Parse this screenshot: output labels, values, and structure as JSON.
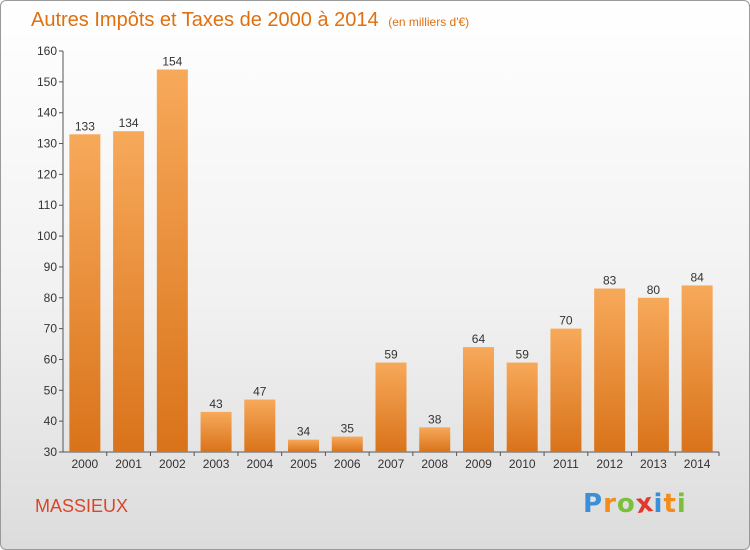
{
  "chart_data": {
    "type": "bar",
    "title": "Autres Impôts et Taxes de 2000 à 2014",
    "subtitle": "(en milliers d'€)",
    "categories": [
      "2000",
      "2001",
      "2002",
      "2003",
      "2004",
      "2005",
      "2006",
      "2007",
      "2008",
      "2009",
      "2010",
      "2011",
      "2012",
      "2013",
      "2014"
    ],
    "values": [
      133,
      134,
      154,
      43,
      47,
      34,
      35,
      59,
      38,
      64,
      59,
      70,
      83,
      80,
      84
    ],
    "ylim": [
      30,
      160
    ],
    "yticks": [
      30,
      40,
      50,
      60,
      70,
      80,
      90,
      100,
      110,
      120,
      130,
      140,
      150,
      160
    ],
    "grid": false,
    "colors": {
      "bar_light": "#f7a95a",
      "bar_dark": "#d9731a",
      "title": "#e0700f"
    }
  },
  "commune": "MASSIEUX",
  "logo": {
    "text": "Proxiti",
    "letters": [
      {
        "ch": "P",
        "color": "#3a8fd6"
      },
      {
        "ch": "r",
        "color": "#f28c1a"
      },
      {
        "ch": "o",
        "color": "#7bbf3a"
      },
      {
        "ch": "x",
        "color": "#e03a2e"
      },
      {
        "ch": "i",
        "color": "#3a8fd6"
      },
      {
        "ch": "t",
        "color": "#f28c1a"
      },
      {
        "ch": "i",
        "color": "#7bbf3a"
      }
    ]
  }
}
